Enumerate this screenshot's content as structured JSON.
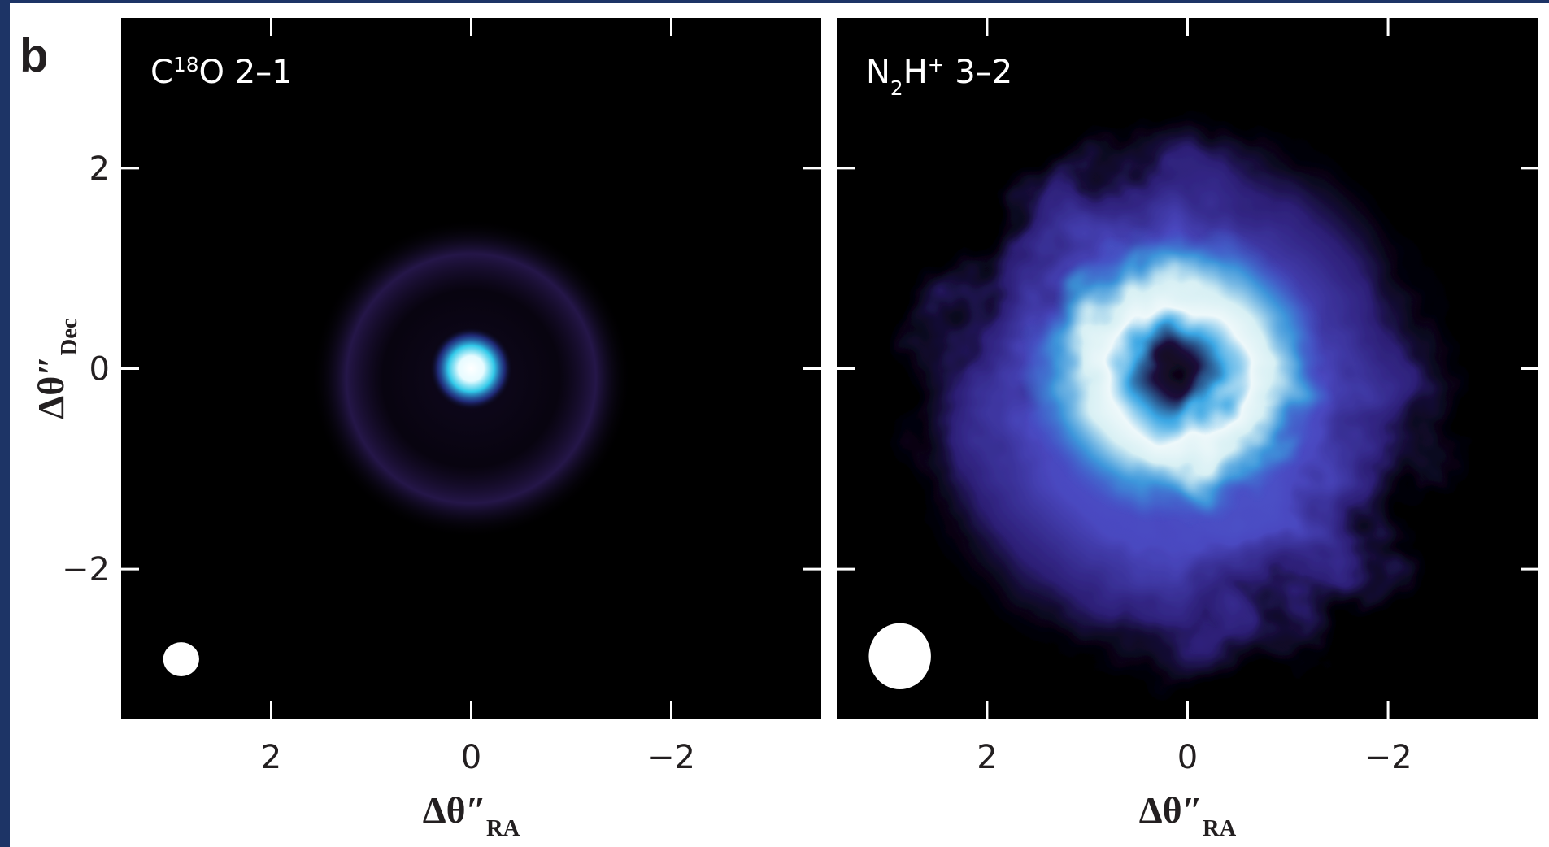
{
  "figure_label": "b",
  "chart_data": [
    {
      "type": "image",
      "title": [
        {
          "text": "C"
        },
        {
          "text": "18",
          "style": "sup"
        },
        {
          "text": "O 2–1"
        }
      ],
      "xlabel": [
        {
          "text": "Δθ″"
        },
        {
          "text": "RA",
          "style": "sub"
        }
      ],
      "ylabel": [
        {
          "text": "Δθ″"
        },
        {
          "text": "Dec",
          "style": "sub"
        }
      ],
      "xlim": [
        3.5,
        -3.5
      ],
      "ylim": [
        -3.5,
        3.5
      ],
      "xticks": [
        2,
        0,
        {
          "value": -2,
          "label": "−2"
        }
      ],
      "yticks": [
        {
          "value": -2,
          "label": "−2"
        },
        0,
        2
      ],
      "ytick_labels": true
    },
    {
      "type": "image",
      "title": [
        {
          "text": "N"
        },
        {
          "text": "2",
          "style": "sub"
        },
        {
          "text": "H"
        },
        {
          "text": "+",
          "style": "sup"
        },
        {
          "text": " 3–2"
        }
      ],
      "xlabel": [
        {
          "text": "Δθ″"
        },
        {
          "text": "RA",
          "style": "sub"
        }
      ],
      "xlim": [
        3.5,
        -3.5
      ],
      "ylim": [
        -3.5,
        3.5
      ],
      "xticks": [
        2,
        0,
        {
          "value": -2,
          "label": "−2"
        }
      ],
      "yticks": [
        -2,
        0,
        2
      ],
      "ytick_labels": false
    }
  ]
}
